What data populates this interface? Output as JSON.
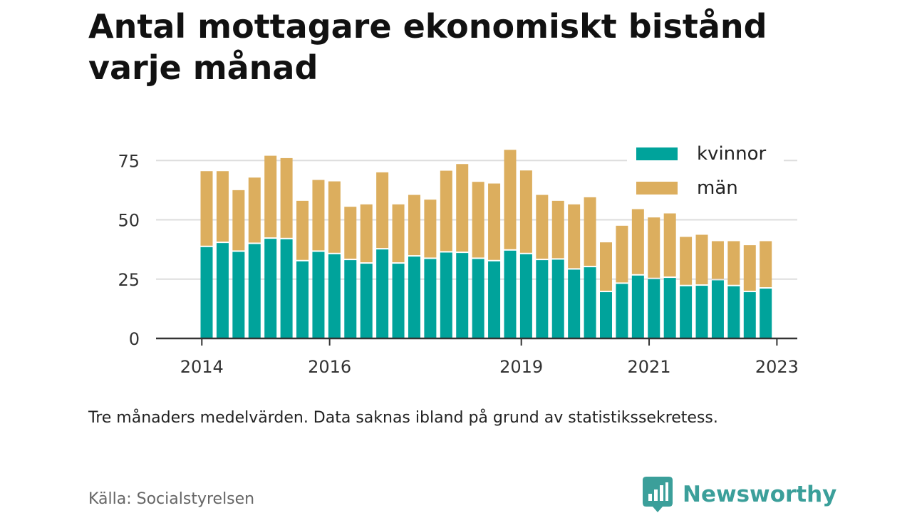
{
  "title": "Antal mottagare ekonomiskt bistånd varje månad",
  "note": "Tre månaders medelvärden. Data saknas ibland på grund av statistikssekretess.",
  "source": "Källa: Socialstyrelsen",
  "brand": "Newsworthy",
  "brand_icon": "bar-chart-badge-icon",
  "chart_data": {
    "type": "bar",
    "stacked": true,
    "x_tick_labels": [
      "2014",
      "2016",
      "2019",
      "2021",
      "2023"
    ],
    "x_tick_index": [
      -0.3,
      7.7,
      19.7,
      27.7,
      35.7
    ],
    "y_ticks": [
      0,
      25,
      50,
      75
    ],
    "ylim": [
      0,
      80
    ],
    "grid": true,
    "legend_position": "top-right",
    "series": [
      {
        "name": "kvinnor",
        "color": "#00a39b",
        "values": [
          38.5,
          40.2,
          36.5,
          39.8,
          42,
          41.8,
          32.5,
          36.5,
          35.5,
          33,
          31.5,
          37.5,
          31.5,
          34.5,
          33.5,
          36.2,
          36,
          33.5,
          32.5,
          37,
          35.5,
          33,
          33.2,
          29,
          30,
          19.5,
          23,
          26.5,
          25,
          25.5,
          22,
          22.2,
          24.5,
          22,
          19.5,
          21
        ]
      },
      {
        "name": "män",
        "color": "#dcae5e",
        "values": [
          32,
          30.3,
          26,
          28,
          35,
          34.2,
          25.5,
          30.3,
          30.7,
          22.5,
          25,
          32.5,
          25,
          26,
          25,
          34.5,
          37.5,
          32.5,
          32.8,
          42.5,
          35.3,
          27.5,
          24.8,
          27.5,
          29.5,
          21,
          24.5,
          28,
          26,
          27.2,
          20.8,
          21.5,
          16.5,
          19,
          19.8,
          20
        ]
      }
    ]
  }
}
